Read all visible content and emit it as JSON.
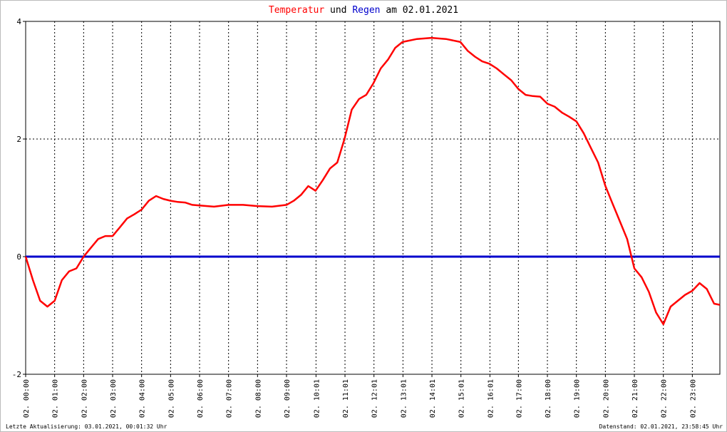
{
  "chart_data": {
    "type": "line",
    "title_parts": [
      "Temperatur",
      "und",
      "Regen",
      "am 02.01.2021"
    ],
    "footer_left": "Letzte Aktualisierung: 03.01.2021, 00:01:32 Uhr",
    "footer_right": "Datenstand: 02.01.2021, 23:58:45 Uhr",
    "xlim": [
      0,
      23.95
    ],
    "xticks": [
      {
        "value": 0,
        "label": "02. 00:00"
      },
      {
        "value": 1,
        "label": "02. 01:00"
      },
      {
        "value": 2,
        "label": "02. 02:00"
      },
      {
        "value": 3,
        "label": "02. 03:00"
      },
      {
        "value": 4,
        "label": "02. 04:00"
      },
      {
        "value": 5,
        "label": "02. 05:00"
      },
      {
        "value": 6,
        "label": "02. 06:00"
      },
      {
        "value": 7,
        "label": "02. 07:00"
      },
      {
        "value": 8,
        "label": "02. 08:00"
      },
      {
        "value": 9,
        "label": "02. 09:00"
      },
      {
        "value": 10.0167,
        "label": "02. 10:01"
      },
      {
        "value": 11.0167,
        "label": "02. 11:01"
      },
      {
        "value": 12.0167,
        "label": "02. 12:01"
      },
      {
        "value": 13.0167,
        "label": "02. 13:01"
      },
      {
        "value": 14.0167,
        "label": "02. 14:01"
      },
      {
        "value": 15.0167,
        "label": "02. 15:01"
      },
      {
        "value": 16.0167,
        "label": "02. 16:01"
      },
      {
        "value": 17,
        "label": "02. 17:00"
      },
      {
        "value": 18,
        "label": "02. 18:00"
      },
      {
        "value": 19,
        "label": "02. 19:00"
      },
      {
        "value": 20,
        "label": "02. 20:00"
      },
      {
        "value": 21,
        "label": "02. 21:00"
      },
      {
        "value": 22,
        "label": "02. 22:00"
      },
      {
        "value": 23,
        "label": "02. 23:00"
      }
    ],
    "ylim": [
      -2,
      4
    ],
    "yticks": [
      -2,
      0,
      2,
      4
    ],
    "grid": true,
    "series": [
      {
        "name": "Temperatur",
        "color": "#ff0000",
        "x": [
          0,
          0.25,
          0.5,
          0.75,
          1,
          1.25,
          1.5,
          1.75,
          2,
          2.25,
          2.5,
          2.75,
          3,
          3.25,
          3.5,
          3.75,
          4,
          4.25,
          4.5,
          4.75,
          5,
          5.25,
          5.5,
          5.75,
          6,
          6.5,
          7,
          7.5,
          8,
          8.5,
          9,
          9.25,
          9.5,
          9.75,
          10,
          10.25,
          10.5,
          10.75,
          11,
          11.25,
          11.5,
          11.75,
          12,
          12.25,
          12.5,
          12.75,
          13,
          13.5,
          14,
          14.5,
          15,
          15.25,
          15.5,
          15.75,
          16,
          16.25,
          16.5,
          16.75,
          17,
          17.25,
          17.5,
          17.75,
          18,
          18.25,
          18.5,
          18.75,
          19,
          19.25,
          19.5,
          19.75,
          20,
          20.25,
          20.5,
          20.75,
          21,
          21.25,
          21.5,
          21.75,
          22,
          22.25,
          22.5,
          22.75,
          23,
          23.25,
          23.5,
          23.75,
          23.95
        ],
        "values": [
          0,
          -0.4,
          -0.75,
          -0.85,
          -0.75,
          -0.4,
          -0.25,
          -0.2,
          0,
          0.15,
          0.3,
          0.35,
          0.35,
          0.5,
          0.65,
          0.72,
          0.8,
          0.95,
          1.03,
          0.98,
          0.95,
          0.93,
          0.92,
          0.88,
          0.87,
          0.85,
          0.88,
          0.88,
          0.86,
          0.85,
          0.88,
          0.95,
          1.05,
          1.2,
          1.12,
          1.3,
          1.5,
          1.6,
          2.0,
          2.5,
          2.68,
          2.75,
          2.95,
          3.2,
          3.35,
          3.55,
          3.65,
          3.7,
          3.72,
          3.7,
          3.65,
          3.5,
          3.4,
          3.32,
          3.28,
          3.2,
          3.1,
          3.0,
          2.85,
          2.75,
          2.73,
          2.72,
          2.6,
          2.55,
          2.45,
          2.38,
          2.3,
          2.1,
          1.85,
          1.6,
          1.2,
          0.9,
          0.6,
          0.3,
          -0.2,
          -0.35,
          -0.6,
          -0.95,
          -1.15,
          -0.85,
          -0.75,
          -0.65,
          -0.58,
          -0.45,
          -0.55,
          -0.8,
          -0.82
        ]
      },
      {
        "name": "Regen",
        "color": "#0000cc",
        "x": [
          0,
          23.95
        ],
        "values": [
          0,
          0
        ]
      }
    ]
  }
}
